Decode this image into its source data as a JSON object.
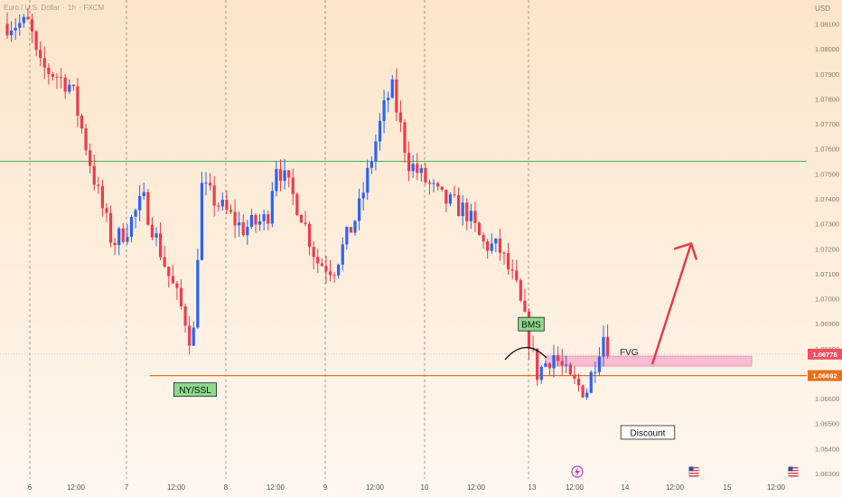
{
  "header": {
    "symbol": "Euro / U.S. Dollar",
    "interval": "1h",
    "exchange": "FXCM",
    "currency": "USD"
  },
  "axis": {
    "ticks": [
      "1.08100",
      "1.08000",
      "1.07900",
      "1.07800",
      "1.07700",
      "1.07600",
      "1.07500",
      "1.07400",
      "1.07300",
      "1.07200",
      "1.07100",
      "1.07000",
      "1.06900",
      "1.06800",
      "1.06700",
      "1.06600",
      "1.06500",
      "1.06400",
      "1.06300"
    ],
    "x_labels": [
      "6",
      "12:00",
      "7",
      "12:00",
      "8",
      "12:00",
      "9",
      "12:00",
      "10",
      "12:00",
      "13",
      "12:00",
      "14",
      "12:00",
      "15",
      "12:00"
    ]
  },
  "price_tags": {
    "current": "1.06778",
    "ssl_level": "1.06692"
  },
  "annotations": {
    "bms": "BMS",
    "ssl": "NY/SSL",
    "fvg": "FVG",
    "discount": "Discount"
  },
  "colors": {
    "bull": "#2962ff",
    "bear": "#ef3b4a",
    "resistance_line": "#4caf50",
    "ssl_line": "#e8701a",
    "arrow": "#e53946",
    "fvg_fill": "#f8bbd0",
    "label_green": "#8cd98c"
  },
  "chart_data": {
    "type": "candlestick",
    "symbol": "Euro / U.S. Dollar, 1h, FXCM",
    "y_unit": "USD",
    "ylim": [
      1.063,
      1.0812
    ],
    "levels": {
      "resistance": 1.0755,
      "ssl": 1.06692,
      "current": 1.06778,
      "fvg_low": 1.0673,
      "fvg_high": 1.0677
    },
    "day_separators": [
      "6",
      "7",
      "8",
      "9",
      "10",
      "13"
    ],
    "approx_path": [
      {
        "t": "6 00:00",
        "close": 1.081
      },
      {
        "t": "6 02:00",
        "close": 1.0793
      },
      {
        "t": "6 06:00",
        "close": 1.079
      },
      {
        "t": "6 10:00",
        "close": 1.0785
      },
      {
        "t": "6 16:00",
        "close": 1.0745
      },
      {
        "t": "6 20:00",
        "close": 1.0722
      },
      {
        "t": "7 00:00",
        "close": 1.0728
      },
      {
        "t": "7 04:00",
        "close": 1.074
      },
      {
        "t": "7 10:00",
        "close": 1.071
      },
      {
        "t": "7 14:00",
        "close": 1.0693
      },
      {
        "t": "7 16:00",
        "close": 1.068
      },
      {
        "t": "7 18:00",
        "close": 1.0745
      },
      {
        "t": "8 04:00",
        "close": 1.0728
      },
      {
        "t": "8 10:00",
        "close": 1.0732
      },
      {
        "t": "8 12:00",
        "close": 1.0755
      },
      {
        "t": "8 18:00",
        "close": 1.0735
      },
      {
        "t": "8 22:00",
        "close": 1.0715
      },
      {
        "t": "9 02:00",
        "close": 1.0712
      },
      {
        "t": "9 08:00",
        "close": 1.0735
      },
      {
        "t": "9 14:00",
        "close": 1.0775
      },
      {
        "t": "9 16:00",
        "close": 1.0785
      },
      {
        "t": "9 20:00",
        "close": 1.0755
      },
      {
        "t": "10 04:00",
        "close": 1.074
      },
      {
        "t": "10 10:00",
        "close": 1.0735
      },
      {
        "t": "10 14:00",
        "close": 1.0722
      },
      {
        "t": "10 18:00",
        "close": 1.072
      },
      {
        "t": "10 22:00",
        "close": 1.0705
      },
      {
        "t": "13 00:00",
        "close": 1.0685
      },
      {
        "t": "13 02:00",
        "close": 1.067
      },
      {
        "t": "13 06:00",
        "close": 1.0678
      },
      {
        "t": "13 10:00",
        "close": 1.0667
      },
      {
        "t": "13 14:00",
        "close": 1.0663
      },
      {
        "t": "13 18:00",
        "close": 1.0686
      },
      {
        "t": "13 20:00",
        "close": 1.06778
      }
    ],
    "projection": {
      "from": 1.0673,
      "to": 1.0721,
      "direction": "up"
    }
  }
}
